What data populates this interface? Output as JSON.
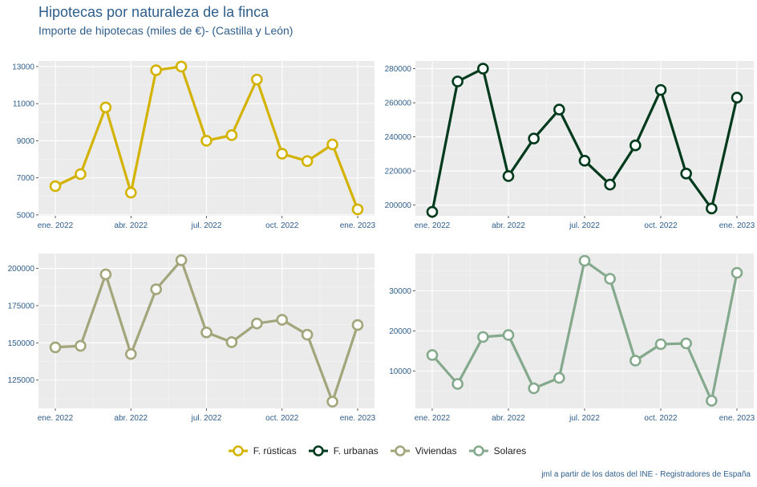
{
  "title": "Hipotecas por naturaleza de la finca",
  "subtitle": "Importe de hipotecas (miles de €)- (Castilla y León)",
  "caption": "jml a partir de los datos del INE - Registradores de España",
  "x_tick_labels": [
    "ene. 2022",
    "abr. 2022",
    "jul. 2022",
    "oct. 2022",
    "ene. 2023"
  ],
  "legend": [
    {
      "label": "F. rústicas",
      "color": "#d4b300"
    },
    {
      "label": "F. urbanas",
      "color": "#003a1c"
    },
    {
      "label": "Viviendas",
      "color": "#a3a57a"
    },
    {
      "label": "Solares",
      "color": "#84a98c"
    }
  ],
  "chart_data": [
    {
      "type": "line",
      "name": "F. rústicas",
      "color": "#d4b300",
      "categories": [
        "ene. 2022",
        "feb. 2022",
        "mar. 2022",
        "abr. 2022",
        "may. 2022",
        "jun. 2022",
        "jul. 2022",
        "ago. 2022",
        "sep. 2022",
        "oct. 2022",
        "nov. 2022",
        "dic. 2022",
        "ene. 2023"
      ],
      "values": [
        6550,
        7200,
        10800,
        6200,
        12800,
        13000,
        9000,
        9300,
        12300,
        8300,
        7900,
        8800,
        5300
      ],
      "ylim": [
        4950,
        13300
      ],
      "yticks": [
        5000,
        7000,
        9000,
        11000,
        13000
      ],
      "ytick_labels": [
        "5000",
        "7000",
        "9000",
        "11000",
        "13000"
      ]
    },
    {
      "type": "line",
      "name": "F. urbanas",
      "color": "#003a1c",
      "categories": [
        "ene. 2022",
        "feb. 2022",
        "mar. 2022",
        "abr. 2022",
        "may. 2022",
        "jun. 2022",
        "jul. 2022",
        "ago. 2022",
        "sep. 2022",
        "oct. 2022",
        "nov. 2022",
        "dic. 2022",
        "ene. 2023"
      ],
      "values": [
        196000,
        272500,
        280000,
        217000,
        239000,
        256000,
        226000,
        212000,
        235000,
        267500,
        218500,
        198000,
        263000
      ],
      "ylim": [
        193700,
        284500
      ],
      "yticks": [
        200000,
        220000,
        240000,
        260000,
        280000
      ],
      "ytick_labels": [
        "200000",
        "220000",
        "240000",
        "260000",
        "280000"
      ]
    },
    {
      "type": "line",
      "name": "Viviendas",
      "color": "#a3a57a",
      "categories": [
        "ene. 2022",
        "feb. 2022",
        "mar. 2022",
        "abr. 2022",
        "may. 2022",
        "jun. 2022",
        "jul. 2022",
        "ago. 2022",
        "sep. 2022",
        "oct. 2022",
        "nov. 2022",
        "dic. 2022",
        "ene. 2023"
      ],
      "values": [
        147000,
        148000,
        196000,
        142500,
        186000,
        205500,
        157000,
        150500,
        163000,
        165500,
        155500,
        110500,
        162000
      ],
      "ylim": [
        106000,
        210000
      ],
      "yticks": [
        125000,
        150000,
        175000,
        200000
      ],
      "ytick_labels": [
        "125000",
        "150000",
        "175000",
        "200000"
      ]
    },
    {
      "type": "line",
      "name": "Solares",
      "color": "#84a98c",
      "categories": [
        "ene. 2022",
        "feb. 2022",
        "mar. 2022",
        "abr. 2022",
        "may. 2022",
        "jun. 2022",
        "jul. 2022",
        "ago. 2022",
        "sep. 2022",
        "oct. 2022",
        "nov. 2022",
        "dic. 2022",
        "ene. 2023"
      ],
      "values": [
        14000,
        6800,
        18500,
        19000,
        5700,
        8300,
        37500,
        33000,
        12600,
        16700,
        16900,
        2600,
        34500
      ],
      "ylim": [
        700,
        39300
      ],
      "yticks": [
        10000,
        20000,
        30000
      ],
      "ytick_labels": [
        "10000",
        "20000",
        "30000"
      ]
    }
  ]
}
